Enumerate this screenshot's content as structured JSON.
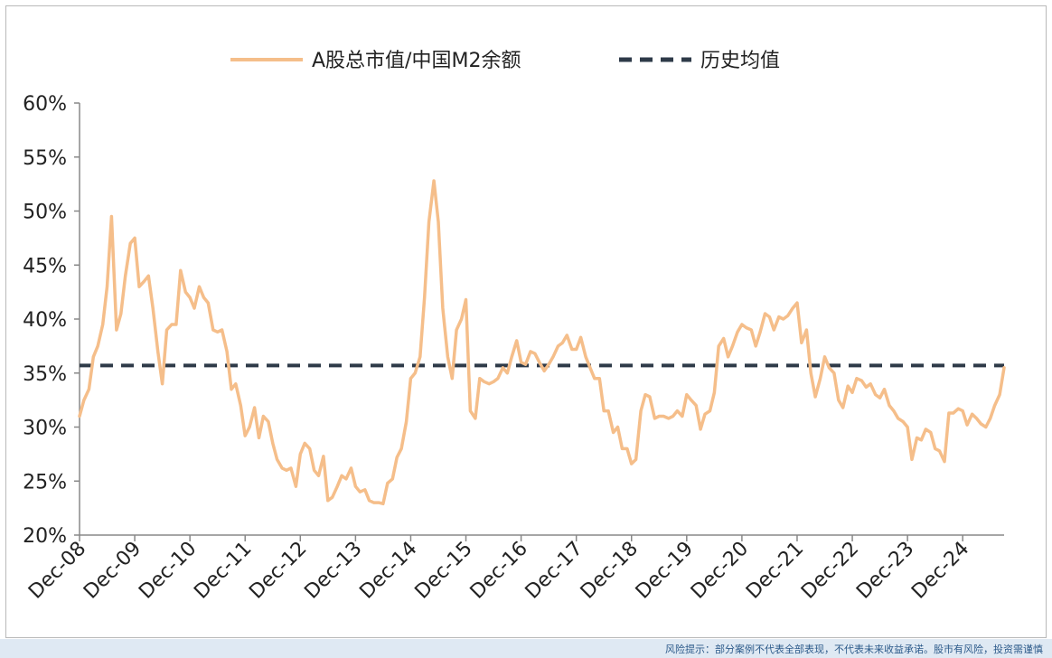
{
  "chart_data": {
    "type": "line",
    "title": "",
    "xlabel": "",
    "ylabel": "",
    "ylim": [
      20,
      60
    ],
    "yticks": [
      "20%",
      "25%",
      "30%",
      "35%",
      "40%",
      "45%",
      "50%",
      "55%",
      "60%"
    ],
    "xticks": [
      "Dec-08",
      "Dec-09",
      "Dec-10",
      "Dec-11",
      "Dec-12",
      "Dec-13",
      "Dec-14",
      "Dec-15",
      "Dec-16",
      "Dec-17",
      "Dec-18",
      "Dec-19",
      "Dec-20",
      "Dec-21",
      "Dec-22",
      "Dec-23",
      "Dec-24"
    ],
    "grid": false,
    "legend_position": "top-center",
    "x_unit": "years after Dec-08",
    "series": [
      {
        "name": "A股总市值/中国M2余额",
        "color": "#f5be8a",
        "style": "solid",
        "points": [
          [
            0.0,
            31.0
          ],
          [
            0.08,
            32.5
          ],
          [
            0.17,
            33.5
          ],
          [
            0.25,
            36.5
          ],
          [
            0.33,
            37.5
          ],
          [
            0.42,
            39.5
          ],
          [
            0.5,
            43.0
          ],
          [
            0.58,
            49.5
          ],
          [
            0.67,
            39.0
          ],
          [
            0.75,
            40.5
          ],
          [
            0.83,
            44.0
          ],
          [
            0.92,
            47.0
          ],
          [
            1.0,
            47.5
          ],
          [
            1.08,
            43.0
          ],
          [
            1.17,
            43.5
          ],
          [
            1.25,
            44.0
          ],
          [
            1.33,
            41.0
          ],
          [
            1.42,
            37.0
          ],
          [
            1.5,
            34.0
          ],
          [
            1.58,
            39.0
          ],
          [
            1.67,
            39.5
          ],
          [
            1.75,
            39.5
          ],
          [
            1.83,
            44.5
          ],
          [
            1.92,
            42.5
          ],
          [
            2.0,
            42.0
          ],
          [
            2.08,
            41.0
          ],
          [
            2.17,
            43.0
          ],
          [
            2.25,
            42.0
          ],
          [
            2.33,
            41.5
          ],
          [
            2.42,
            39.0
          ],
          [
            2.5,
            38.8
          ],
          [
            2.58,
            39.0
          ],
          [
            2.67,
            37.0
          ],
          [
            2.75,
            33.5
          ],
          [
            2.83,
            34.0
          ],
          [
            2.92,
            32.0
          ],
          [
            3.0,
            29.2
          ],
          [
            3.08,
            30.0
          ],
          [
            3.17,
            31.8
          ],
          [
            3.25,
            29.0
          ],
          [
            3.33,
            31.0
          ],
          [
            3.42,
            30.5
          ],
          [
            3.5,
            28.5
          ],
          [
            3.58,
            27.0
          ],
          [
            3.67,
            26.2
          ],
          [
            3.75,
            26.0
          ],
          [
            3.83,
            26.2
          ],
          [
            3.92,
            24.5
          ],
          [
            4.0,
            27.5
          ],
          [
            4.08,
            28.5
          ],
          [
            4.17,
            28.0
          ],
          [
            4.25,
            26.0
          ],
          [
            4.33,
            25.5
          ],
          [
            4.42,
            27.3
          ],
          [
            4.5,
            23.2
          ],
          [
            4.58,
            23.5
          ],
          [
            4.67,
            24.5
          ],
          [
            4.75,
            25.5
          ],
          [
            4.83,
            25.2
          ],
          [
            4.92,
            26.2
          ],
          [
            5.0,
            24.5
          ],
          [
            5.08,
            24.0
          ],
          [
            5.17,
            24.2
          ],
          [
            5.25,
            23.2
          ],
          [
            5.33,
            23.0
          ],
          [
            5.42,
            23.0
          ],
          [
            5.5,
            22.9
          ],
          [
            5.58,
            24.8
          ],
          [
            5.67,
            25.2
          ],
          [
            5.75,
            27.2
          ],
          [
            5.83,
            28.0
          ],
          [
            5.92,
            30.5
          ],
          [
            6.0,
            34.5
          ],
          [
            6.08,
            35.0
          ],
          [
            6.17,
            36.5
          ],
          [
            6.25,
            42.0
          ],
          [
            6.33,
            49.0
          ],
          [
            6.42,
            52.8
          ],
          [
            6.5,
            49.0
          ],
          [
            6.58,
            41.0
          ],
          [
            6.67,
            36.5
          ],
          [
            6.75,
            34.5
          ],
          [
            6.83,
            39.0
          ],
          [
            6.92,
            40.0
          ],
          [
            7.0,
            41.8
          ],
          [
            7.08,
            31.5
          ],
          [
            7.17,
            30.8
          ],
          [
            7.25,
            34.5
          ],
          [
            7.33,
            34.2
          ],
          [
            7.42,
            34.0
          ],
          [
            7.5,
            34.2
          ],
          [
            7.58,
            34.5
          ],
          [
            7.67,
            35.5
          ],
          [
            7.75,
            35.0
          ],
          [
            7.83,
            36.5
          ],
          [
            7.92,
            38.0
          ],
          [
            8.0,
            36.0
          ],
          [
            8.08,
            35.8
          ],
          [
            8.17,
            37.0
          ],
          [
            8.25,
            36.8
          ],
          [
            8.33,
            36.0
          ],
          [
            8.42,
            35.2
          ],
          [
            8.5,
            35.8
          ],
          [
            8.58,
            36.5
          ],
          [
            8.67,
            37.5
          ],
          [
            8.75,
            37.8
          ],
          [
            8.83,
            38.5
          ],
          [
            8.92,
            37.2
          ],
          [
            9.0,
            37.2
          ],
          [
            9.08,
            38.3
          ],
          [
            9.17,
            36.5
          ],
          [
            9.25,
            35.5
          ],
          [
            9.33,
            34.5
          ],
          [
            9.42,
            34.5
          ],
          [
            9.5,
            31.5
          ],
          [
            9.58,
            31.5
          ],
          [
            9.67,
            29.5
          ],
          [
            9.75,
            30.0
          ],
          [
            9.83,
            28.0
          ],
          [
            9.92,
            28.0
          ],
          [
            10.0,
            26.6
          ],
          [
            10.08,
            27.0
          ],
          [
            10.17,
            31.5
          ],
          [
            10.25,
            33.0
          ],
          [
            10.33,
            32.8
          ],
          [
            10.42,
            30.8
          ],
          [
            10.5,
            31.0
          ],
          [
            10.58,
            31.0
          ],
          [
            10.67,
            30.8
          ],
          [
            10.75,
            31.0
          ],
          [
            10.83,
            31.5
          ],
          [
            10.92,
            31.0
          ],
          [
            11.0,
            33.0
          ],
          [
            11.08,
            32.5
          ],
          [
            11.17,
            32.0
          ],
          [
            11.25,
            29.8
          ],
          [
            11.33,
            31.2
          ],
          [
            11.42,
            31.5
          ],
          [
            11.5,
            33.2
          ],
          [
            11.58,
            37.5
          ],
          [
            11.67,
            38.2
          ],
          [
            11.75,
            36.5
          ],
          [
            11.83,
            37.5
          ],
          [
            11.92,
            38.8
          ],
          [
            12.0,
            39.5
          ],
          [
            12.08,
            39.2
          ],
          [
            12.17,
            39.0
          ],
          [
            12.25,
            37.5
          ],
          [
            12.33,
            38.8
          ],
          [
            12.42,
            40.5
          ],
          [
            12.5,
            40.2
          ],
          [
            12.58,
            39.0
          ],
          [
            12.67,
            40.2
          ],
          [
            12.75,
            40.0
          ],
          [
            12.83,
            40.3
          ],
          [
            12.92,
            41.0
          ],
          [
            13.0,
            41.5
          ],
          [
            13.08,
            37.8
          ],
          [
            13.17,
            39.0
          ],
          [
            13.25,
            35.0
          ],
          [
            13.33,
            32.8
          ],
          [
            13.42,
            34.5
          ],
          [
            13.5,
            36.5
          ],
          [
            13.58,
            35.5
          ],
          [
            13.67,
            35.0
          ],
          [
            13.75,
            32.5
          ],
          [
            13.83,
            31.8
          ],
          [
            13.92,
            33.8
          ],
          [
            14.0,
            33.2
          ],
          [
            14.08,
            34.5
          ],
          [
            14.17,
            34.3
          ],
          [
            14.25,
            33.7
          ],
          [
            14.33,
            34.0
          ],
          [
            14.42,
            33.0
          ],
          [
            14.5,
            32.7
          ],
          [
            14.58,
            33.5
          ],
          [
            14.67,
            32.0
          ],
          [
            14.75,
            31.5
          ],
          [
            14.83,
            30.8
          ],
          [
            14.92,
            30.5
          ],
          [
            15.0,
            30.0
          ],
          [
            15.08,
            27.0
          ],
          [
            15.17,
            29.0
          ],
          [
            15.25,
            28.8
          ],
          [
            15.33,
            29.8
          ],
          [
            15.42,
            29.5
          ],
          [
            15.5,
            28.0
          ],
          [
            15.58,
            27.8
          ],
          [
            15.67,
            26.8
          ],
          [
            15.75,
            31.3
          ],
          [
            15.83,
            31.3
          ],
          [
            15.92,
            31.7
          ],
          [
            16.0,
            31.5
          ],
          [
            16.08,
            30.2
          ],
          [
            16.17,
            31.2
          ],
          [
            16.25,
            30.8
          ],
          [
            16.33,
            30.3
          ],
          [
            16.42,
            30.0
          ],
          [
            16.5,
            30.8
          ],
          [
            16.58,
            32.0
          ],
          [
            16.67,
            33.0
          ],
          [
            16.75,
            35.5
          ]
        ]
      },
      {
        "name": "历史均值",
        "color": "#2e3a48",
        "style": "dashed",
        "value": 35.7
      }
    ]
  },
  "footer": {
    "disclaimer": "风险提示：部分案例不代表全部表现，不代表未来收益承诺。股市有风险，投资需谨慎"
  }
}
